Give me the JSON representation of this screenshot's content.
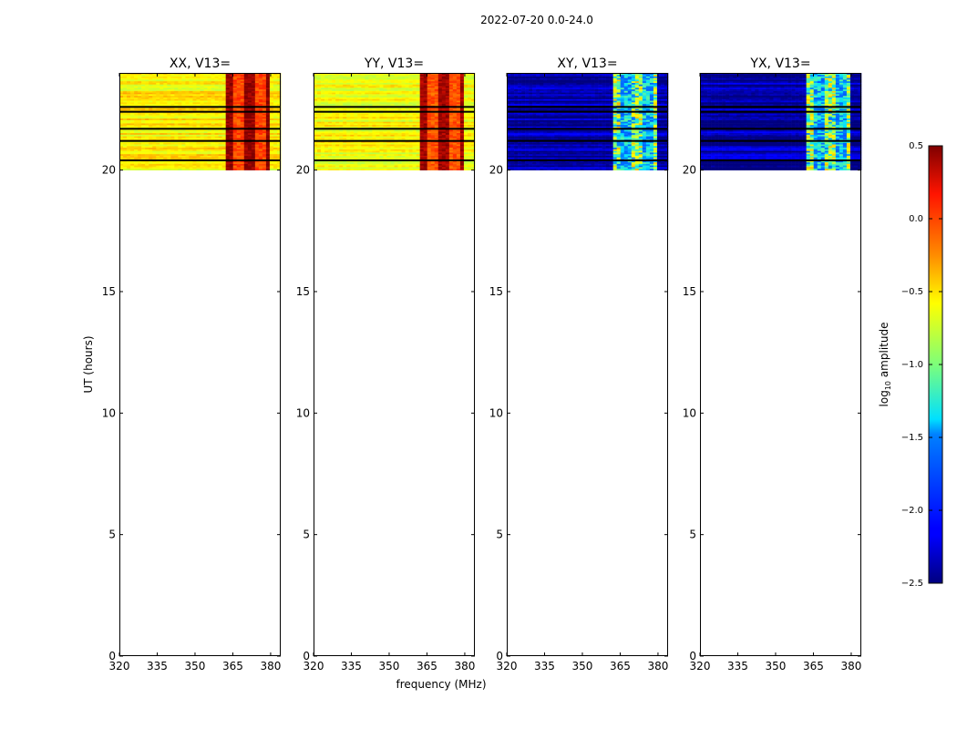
{
  "figure": {
    "suptitle": "2022-07-20 0.0-24.0",
    "xlabel": "frequency (MHz)",
    "ylabel": "UT (hours)"
  },
  "chart_data": {
    "type": "heatmap",
    "title": "2022-07-20 0.0-24.0",
    "xlabel": "frequency (MHz)",
    "ylabel": "UT (hours)",
    "xlim": [
      320,
      384
    ],
    "ylim": [
      0,
      24
    ],
    "xticks": [
      320,
      335,
      350,
      365,
      380
    ],
    "yticks": [
      0,
      5,
      10,
      15,
      20
    ],
    "data_time_range_hours": [
      20.0,
      24.0
    ],
    "flagged_time_rows_hours": [
      20.4,
      21.2,
      21.7,
      22.4,
      22.6
    ],
    "rfi_band_mhz": [
      361,
      379
    ],
    "panels": [
      {
        "title": "XX, V13=",
        "typical_log_amp": -0.55,
        "rfi_log_amp": 0.35
      },
      {
        "title": "YY, V13=",
        "typical_log_amp": -0.6,
        "rfi_log_amp": 0.3
      },
      {
        "title": "XY, V13=",
        "typical_log_amp": -2.4,
        "rfi_log_amp": -1.2
      },
      {
        "title": "YX, V13=",
        "typical_log_amp": -2.4,
        "rfi_log_amp": -1.2
      }
    ],
    "colorbar": {
      "label": "log10 amplitude",
      "label_main": "log",
      "label_sub": "10",
      "label_rest": " amplitude",
      "range": [
        -2.5,
        0.5
      ],
      "ticks": [
        "0.5",
        "0.0",
        "−0.5",
        "−1.0",
        "−1.5",
        "−2.0",
        "−2.5"
      ],
      "tick_values": [
        0.5,
        0.0,
        -0.5,
        -1.0,
        -1.5,
        -2.0,
        -2.5
      ],
      "colormap": "jet"
    }
  }
}
